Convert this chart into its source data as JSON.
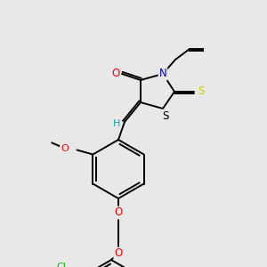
{
  "background_color": "#e8e8e8",
  "atom_colors": {
    "O": "#ff0000",
    "N": "#0000bb",
    "S_ring": "#000000",
    "S_exo": "#cccc00",
    "Cl": "#00bb00",
    "H": "#00aaaa",
    "bond": "#000000"
  },
  "figsize": [
    3.0,
    3.0
  ],
  "dpi": 100
}
